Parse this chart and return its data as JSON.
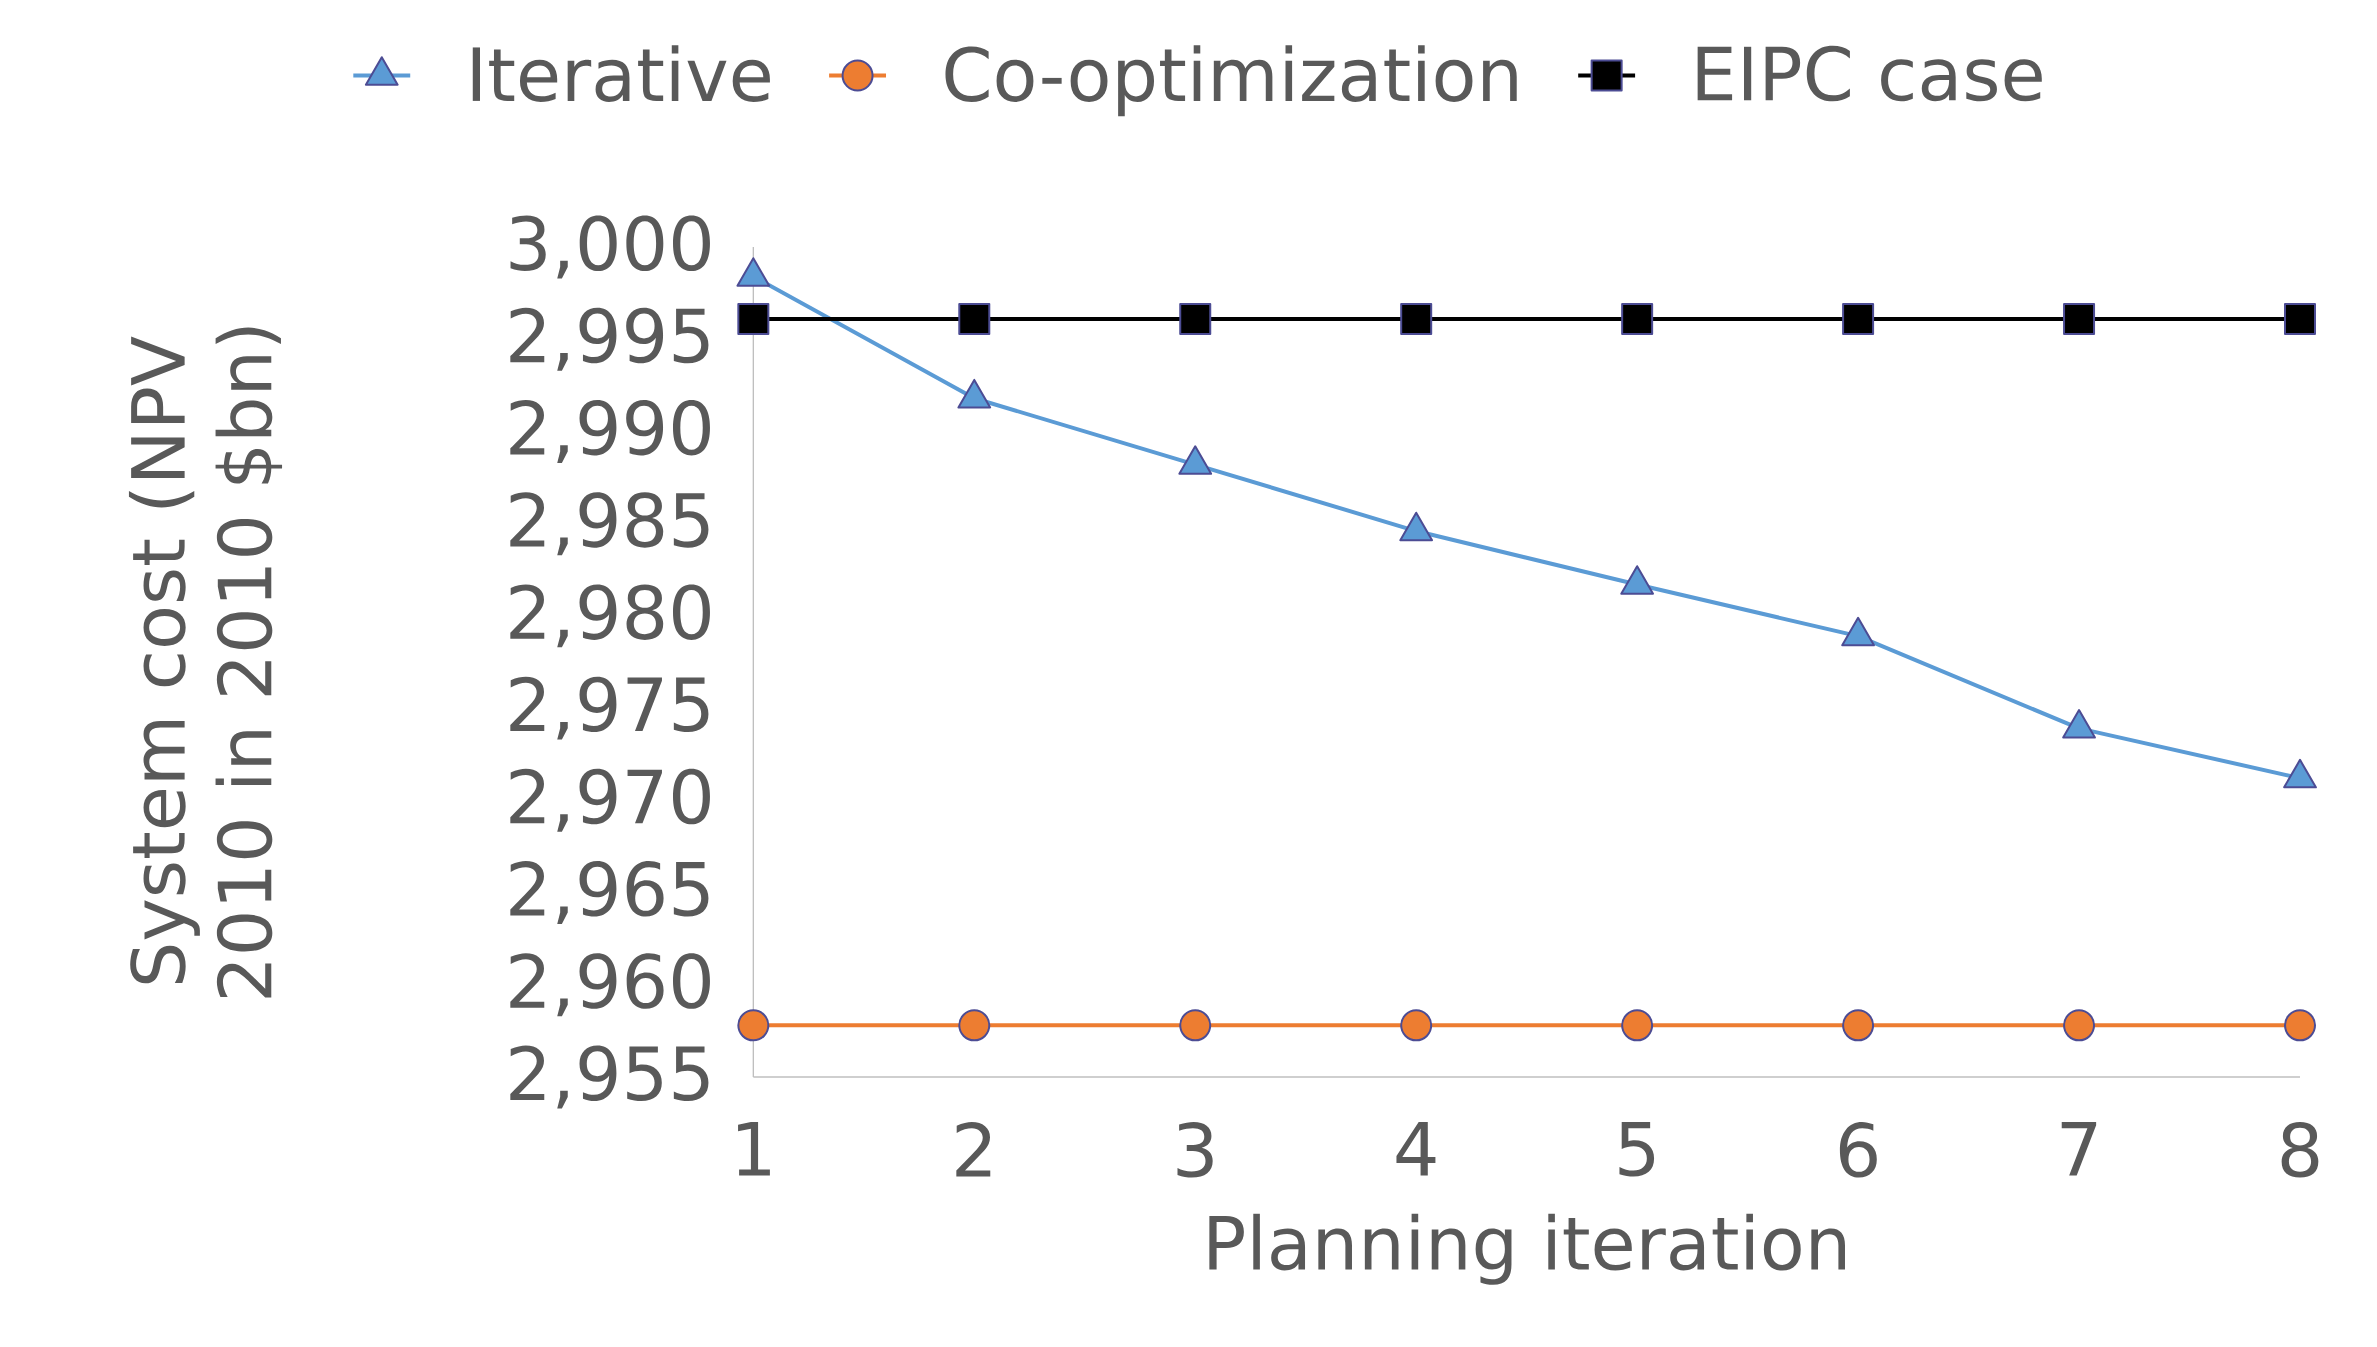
{
  "chart_data": {
    "type": "line",
    "xlabel": "Planning iteration",
    "ylabel": "System cost (NPV 2010 in 2010 $bn)",
    "x": [
      1,
      2,
      3,
      4,
      5,
      6,
      7,
      8
    ],
    "series": [
      {
        "name": "Iterative",
        "color": "#5b9bd5",
        "marker": "triangle",
        "values": [
          2998.4,
          2991.8,
          2988.2,
          2984.6,
          2981.7,
          2978.9,
          2973.9,
          2971.2
        ]
      },
      {
        "name": "Co-optimization",
        "color": "#ed7d31",
        "marker": "circle",
        "values": [
          2957.8,
          2957.8,
          2957.8,
          2957.8,
          2957.8,
          2957.8,
          2957.8,
          2957.8
        ]
      },
      {
        "name": "EIPC case",
        "color": "#000000",
        "marker": "square",
        "values": [
          2996.1,
          2996.1,
          2996.1,
          2996.1,
          2996.1,
          2996.1,
          2996.1,
          2996.1
        ]
      }
    ],
    "xlim": [
      1,
      8
    ],
    "ylim": [
      2955,
      3000
    ],
    "xticks": [
      1,
      2,
      3,
      4,
      5,
      6,
      7,
      8
    ],
    "yticks": [
      {
        "value": 2955,
        "label": "2,955"
      },
      {
        "value": 2960,
        "label": "2,960"
      },
      {
        "value": 2965,
        "label": "2,965"
      },
      {
        "value": 2970,
        "label": "2,970"
      },
      {
        "value": 2975,
        "label": "2,975"
      },
      {
        "value": 2980,
        "label": "2,980"
      },
      {
        "value": 2985,
        "label": "2,985"
      },
      {
        "value": 2990,
        "label": "2,990"
      },
      {
        "value": 2995,
        "label": "2,995"
      },
      {
        "value": 3000,
        "label": "3,000"
      }
    ],
    "legend": "top",
    "grid": false,
    "line_style": "solid"
  }
}
